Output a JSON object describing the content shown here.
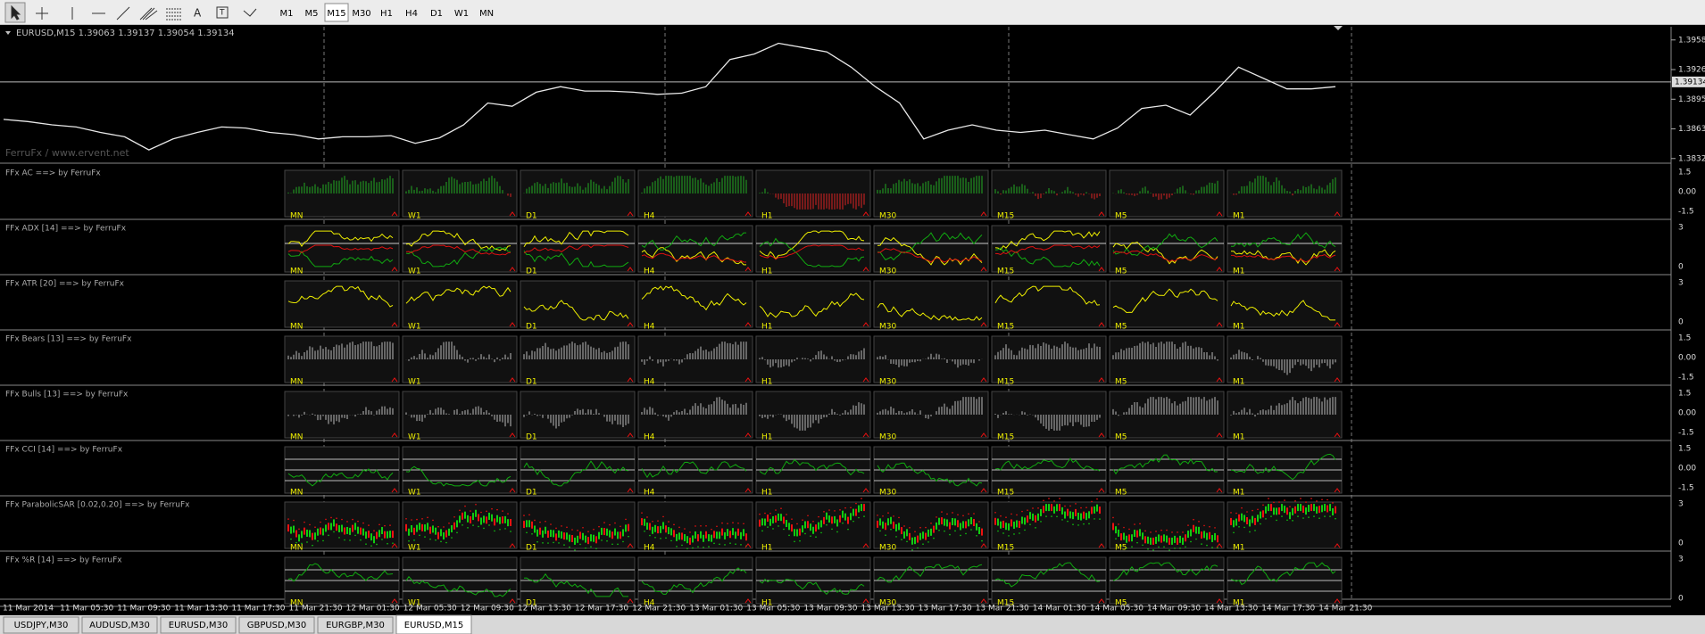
{
  "toolbar": {
    "timeframes": [
      "M1",
      "M5",
      "M15",
      "M30",
      "H1",
      "H4",
      "D1",
      "W1",
      "MN"
    ],
    "active_index": 2
  },
  "main_chart": {
    "header": "EURUSD,M15  1.39063 1.39137 1.39054 1.39134",
    "watermark": "FerruFx / www.ervent.net",
    "ylim": [
      1.3828,
      1.3972
    ],
    "yticks": [
      {
        "value": 1.3958,
        "label": "1.39580"
      },
      {
        "value": 1.39265,
        "label": "1.39265"
      },
      {
        "value": 1.3895,
        "label": "1.38950"
      },
      {
        "value": 1.38635,
        "label": "1.38635"
      },
      {
        "value": 1.3832,
        "label": "1.38320"
      }
    ],
    "current_price": {
      "value": 1.39134,
      "label": "1.39134"
    },
    "close": [
      1.38736,
      1.38713,
      1.38678,
      1.38655,
      1.38597,
      1.38551,
      1.38412,
      1.38528,
      1.38597,
      1.38655,
      1.38644,
      1.38597,
      1.38574,
      1.38528,
      1.38551,
      1.38551,
      1.38563,
      1.38482,
      1.3854,
      1.38678,
      1.3891,
      1.38875,
      1.39025,
      1.39083,
      1.39037,
      1.39037,
      1.39025,
      1.39002,
      1.39014,
      1.39083,
      1.39372,
      1.3943,
      1.39545,
      1.39499,
      1.39453,
      1.39291,
      1.39083,
      1.3891,
      1.38528,
      1.38621,
      1.38678,
      1.38621,
      1.38597,
      1.38621,
      1.38574,
      1.38528,
      1.38644,
      1.38852,
      1.38886,
      1.38782,
      1.39025,
      1.39291,
      1.39175,
      1.3906,
      1.3906,
      1.39083
    ]
  },
  "indicators": [
    {
      "title": "FFx AC ==> by FerruFx",
      "axis_labels": [
        "1.5",
        "0.00",
        "-1.5"
      ]
    },
    {
      "title": "FFx ADX [14] ==> by FerruFx",
      "axis_labels": [
        "3",
        "0"
      ]
    },
    {
      "title": "FFx ATR [20] ==> by FerruFx",
      "axis_labels": [
        "3",
        "0"
      ]
    },
    {
      "title": "FFx Bears [13] ==> by FerruFx",
      "axis_labels": [
        "1.5",
        "0.00",
        "-1.5"
      ]
    },
    {
      "title": "FFx Bulls [13] ==> by FerruFx",
      "axis_labels": [
        "1.5",
        "0.00",
        "-1.5"
      ]
    },
    {
      "title": "FFx CCI [14] ==> by FerruFx",
      "axis_labels": [
        "1.5",
        "0.00",
        "-1.5"
      ]
    },
    {
      "title": "FFx ParabolicSAR [0.02,0.20] ==> by FerruFx",
      "axis_labels": [
        "3",
        "0"
      ]
    },
    {
      "title": "FFx %R [14] ==> by FerruFx",
      "axis_labels": [
        "3",
        "0"
      ]
    }
  ],
  "timeframe_labels": [
    "MN",
    "W1",
    "D1",
    "H4",
    "H1",
    "M30",
    "M15",
    "M5",
    "M1"
  ],
  "time_axis": [
    "11 Mar 2014",
    "11 Mar 05:30",
    "11 Mar 09:30",
    "11 Mar 13:30",
    "11 Mar 17:30",
    "11 Mar 21:30",
    "12 Mar 01:30",
    "12 Mar 05:30",
    "12 Mar 09:30",
    "12 Mar 13:30",
    "12 Mar 17:30",
    "12 Mar 21:30",
    "13 Mar 01:30",
    "13 Mar 05:30",
    "13 Mar 09:30",
    "13 Mar 13:30",
    "13 Mar 17:30",
    "13 Mar 21:30",
    "14 Mar 01:30",
    "14 Mar 05:30",
    "14 Mar 09:30",
    "14 Mar 13:30",
    "14 Mar 17:30",
    "14 Mar 21:30"
  ],
  "tabs": [
    "USDJPY,M30",
    "AUDUSD,M30",
    "EURUSD,M30",
    "GBPUSD,M30",
    "EURGBP,M30",
    "EURUSD,M15"
  ],
  "active_tab": 5
}
